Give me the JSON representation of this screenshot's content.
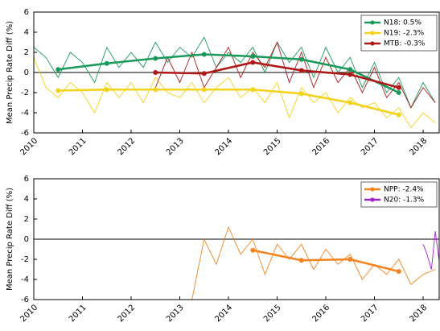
{
  "chart_data": [
    {
      "type": "line",
      "ylabel": "Mean Precip Rate Diff (%)",
      "xlim": [
        2010,
        2018.33
      ],
      "ylim": [
        -6,
        6
      ],
      "xticks": [
        2010,
        2011,
        2012,
        2013,
        2014,
        2015,
        2016,
        2017,
        2018
      ],
      "yticks": [
        -6,
        -4,
        -2,
        0,
        2,
        4,
        6
      ],
      "legend": "upper right",
      "series": [
        {
          "name": "N18: 0.5%",
          "color": "#1a9a5a",
          "x": [
            2010,
            2010.25,
            2010.5,
            2010.75,
            2011,
            2011.25,
            2011.5,
            2011.75,
            2012,
            2012.25,
            2012.5,
            2012.75,
            2013,
            2013.25,
            2013.5,
            2013.75,
            2014,
            2014.25,
            2014.5,
            2014.75,
            2015,
            2015.25,
            2015.5,
            2015.75,
            2016,
            2016.25,
            2016.5,
            2016.75,
            2017,
            2017.25,
            2017.5,
            2017.75,
            2018,
            2018.25
          ],
          "values": [
            2.5,
            1.5,
            -0.5,
            2.0,
            1.0,
            -1.0,
            2.5,
            0.5,
            2.0,
            0.5,
            3.0,
            1.0,
            2.5,
            1.5,
            3.5,
            0.5,
            2.0,
            1.0,
            2.5,
            0.0,
            3.0,
            1.0,
            2.5,
            -0.5,
            2.5,
            0.0,
            1.5,
            -1.5,
            1.0,
            -2.0,
            -0.5,
            -3.5,
            -1.0,
            -3.0
          ],
          "annual_x": [
            2010.5,
            2011.5,
            2012.5,
            2013.5,
            2014.5,
            2015.5,
            2016.5,
            2017.5
          ],
          "annual_values": [
            0.3,
            0.9,
            1.4,
            1.8,
            1.6,
            1.3,
            0.3,
            -2.0
          ]
        },
        {
          "name": "N19: -2.3%",
          "color": "#f2d21a",
          "x": [
            2010,
            2010.25,
            2010.5,
            2010.75,
            2011,
            2011.25,
            2011.5,
            2011.75,
            2012,
            2012.25,
            2012.5,
            2012.75,
            2013,
            2013.25,
            2013.5,
            2013.75,
            2014,
            2014.25,
            2014.5,
            2014.75,
            2015,
            2015.25,
            2015.5,
            2015.75,
            2016,
            2016.25,
            2016.5,
            2016.75,
            2017,
            2017.25,
            2017.5,
            2017.75,
            2018,
            2018.25
          ],
          "values": [
            1.5,
            -1.5,
            -2.5,
            -1.0,
            -2.0,
            -4.0,
            -1.0,
            -2.5,
            -1.0,
            -3.0,
            -0.5,
            -2.0,
            -2.5,
            -1.0,
            -3.0,
            -1.5,
            -0.5,
            -2.5,
            -1.5,
            -3.0,
            -1.0,
            -4.5,
            -1.5,
            -3.0,
            -2.0,
            -4.0,
            -2.5,
            -3.5,
            -3.0,
            -4.5,
            -3.5,
            -5.5,
            -4.0,
            -5.0
          ],
          "annual_x": [
            2010.5,
            2011.5,
            2012.5,
            2013.5,
            2014.5,
            2015.5,
            2016.5,
            2017.5
          ],
          "annual_values": [
            -1.8,
            -1.7,
            -1.7,
            -1.7,
            -1.7,
            -2.1,
            -3.0,
            -4.2
          ]
        },
        {
          "name": "MTB: -0.3%",
          "color": "#b01818",
          "x": [
            2012.5,
            2012.75,
            2013,
            2013.25,
            2013.5,
            2013.75,
            2014,
            2014.25,
            2014.5,
            2014.75,
            2015,
            2015.25,
            2015.5,
            2015.75,
            2016,
            2016.25,
            2016.5,
            2016.75,
            2017,
            2017.25,
            2017.5,
            2017.75,
            2018,
            2018.25
          ],
          "values": [
            -1.5,
            1.5,
            -1.0,
            2.0,
            -1.5,
            0.5,
            2.5,
            -0.5,
            2.0,
            0.5,
            3.0,
            -1.0,
            2.0,
            -1.5,
            1.5,
            -1.0,
            0.5,
            -2.0,
            0.5,
            -2.5,
            -1.0,
            -3.5,
            -1.5,
            -3.0
          ],
          "annual_x": [
            2012.5,
            2013.5,
            2014.5,
            2015.5,
            2016.5,
            2017.5
          ],
          "annual_values": [
            0.0,
            -0.1,
            1.0,
            0.2,
            -0.2,
            -1.5
          ]
        }
      ]
    },
    {
      "type": "line",
      "ylabel": "Mean Precip Rate Diff (%)",
      "xlim": [
        2010,
        2018.33
      ],
      "ylim": [
        -6,
        6
      ],
      "xticks": [
        2010,
        2011,
        2012,
        2013,
        2014,
        2015,
        2016,
        2017,
        2018
      ],
      "yticks": [
        -6,
        -4,
        -2,
        0,
        2,
        4,
        6
      ],
      "legend": "upper right",
      "series": [
        {
          "name": "NPP: -2.4%",
          "color": "#f5841f",
          "x": [
            2013.25,
            2013.5,
            2013.75,
            2014,
            2014.25,
            2014.5,
            2014.75,
            2015,
            2015.25,
            2015.5,
            2015.75,
            2016,
            2016.25,
            2016.5,
            2016.75,
            2017,
            2017.25,
            2017.5,
            2017.75,
            2018,
            2018.25
          ],
          "values": [
            -6,
            0.0,
            -2.5,
            1.2,
            -1.5,
            0.0,
            -3.5,
            -0.5,
            -2.0,
            -0.5,
            -3.0,
            -1.0,
            -2.5,
            -1.5,
            -4.0,
            -2.5,
            -3.5,
            -2.0,
            -4.5,
            -3.5,
            -3.0
          ],
          "annual_x": [
            2014.5,
            2015.5,
            2016.5,
            2017.5
          ],
          "annual_values": [
            -1.1,
            -2.1,
            -2.0,
            -3.2
          ]
        },
        {
          "name": "N20: -1.3%",
          "color": "#a020d0",
          "x": [
            2018,
            2018.08,
            2018.17,
            2018.25,
            2018.33
          ],
          "values": [
            -0.5,
            -1.5,
            -3.0,
            0.8,
            -2.2
          ],
          "annual_x": [],
          "annual_values": []
        }
      ]
    }
  ]
}
